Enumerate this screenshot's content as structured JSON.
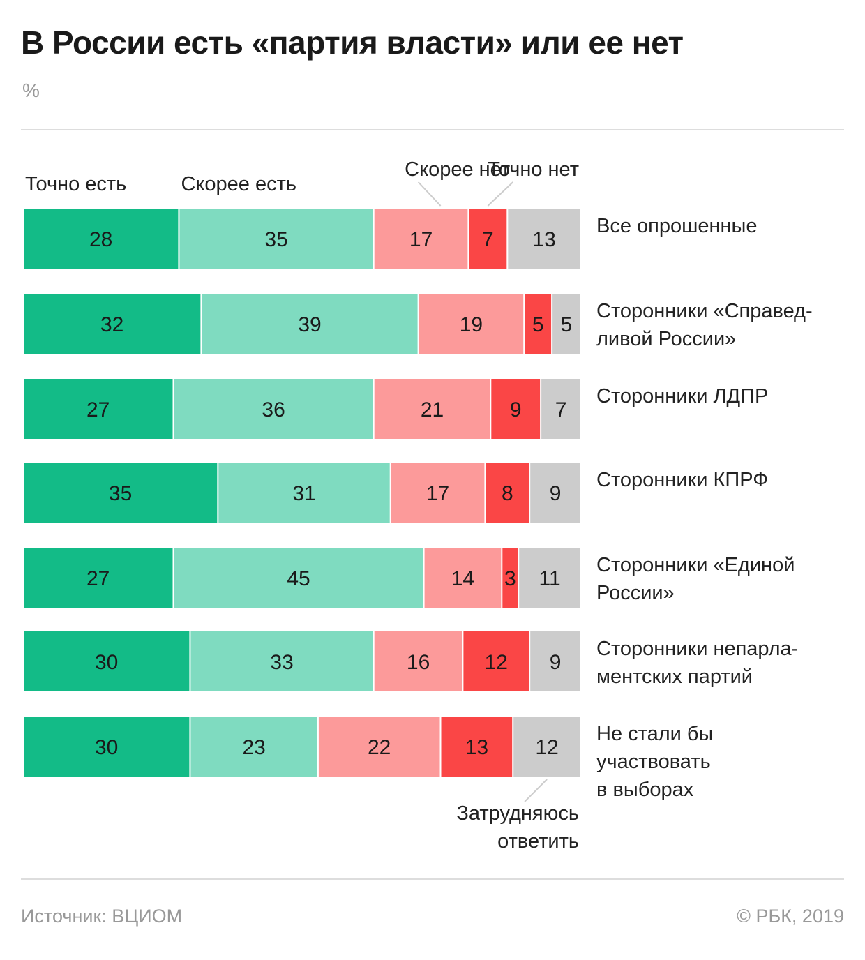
{
  "title": "В России есть «партия власти» или ее нет",
  "unit": "%",
  "source": "Источник: ВЦИОМ",
  "copyright": "© РБК, 2019",
  "colors": {
    "definitely_yes": "#13bb87",
    "rather_yes": "#7fdbc0",
    "rather_no": "#fc9a9a",
    "definitely_no": "#fa4646",
    "hard_to_say": "#cccccc"
  },
  "chart_data": {
    "type": "bar",
    "orientation": "horizontal",
    "stacked": true,
    "title": "В России есть «партия власти» или ее нет",
    "unit": "%",
    "categories": [
      [
        "Все опрошенные"
      ],
      [
        "Сторонники «Справед-",
        "ливой России»"
      ],
      [
        "Сторонники ЛДПР"
      ],
      [
        "Сторонники КПРФ"
      ],
      [
        "Сторонники «Единой",
        "России»"
      ],
      [
        "Сторонники непарла-",
        "ментских партий"
      ],
      [
        "Не стали бы",
        "участвовать",
        "в выборах"
      ]
    ],
    "series": [
      {
        "key": "definitely_yes",
        "name": "Точно есть",
        "values": [
          28,
          32,
          27,
          35,
          27,
          30,
          30
        ]
      },
      {
        "key": "rather_yes",
        "name": "Скорее есть",
        "values": [
          35,
          39,
          36,
          31,
          45,
          33,
          23
        ]
      },
      {
        "key": "rather_no",
        "name": "Скорее нет",
        "values": [
          17,
          19,
          21,
          17,
          14,
          16,
          22
        ]
      },
      {
        "key": "definitely_no",
        "name": "Точно нет",
        "values": [
          7,
          5,
          9,
          8,
          3,
          12,
          13
        ]
      },
      {
        "key": "hard_to_say",
        "name": "Затрудняюсь ответить",
        "name_lines": [
          "Затрудняюсь",
          "ответить"
        ],
        "values": [
          13,
          5,
          7,
          9,
          11,
          9,
          12
        ]
      }
    ],
    "xlim": [
      0,
      100
    ],
    "grid": false,
    "legend": "direct labels above first bar and below last bar"
  }
}
